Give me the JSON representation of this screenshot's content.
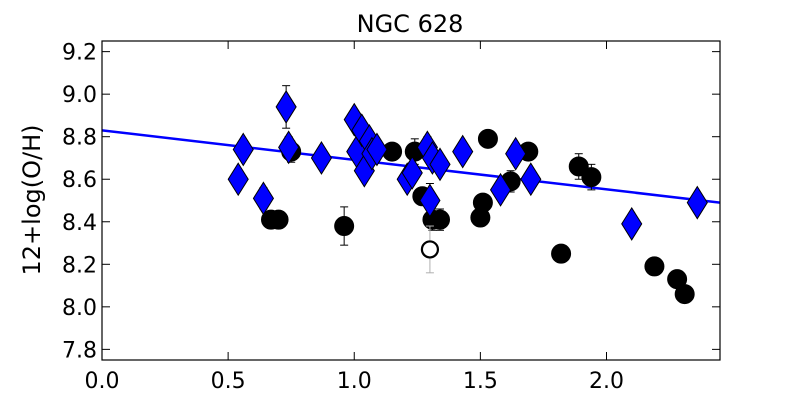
{
  "chart_data": {
    "type": "scatter",
    "title": "NGC 628",
    "xlabel": "",
    "ylabel": "12+log(O/H)",
    "xlim": [
      0.0,
      2.45
    ],
    "ylim": [
      7.75,
      9.25
    ],
    "xticks": [
      "0.0",
      "0.5",
      "1.0",
      "1.5",
      "2.0"
    ],
    "xtick_values": [
      0.0,
      0.5,
      1.0,
      1.5,
      2.0
    ],
    "yticks": [
      "7.8",
      "8.0",
      "8.2",
      "8.4",
      "8.6",
      "8.8",
      "9.0",
      "9.2"
    ],
    "ytick_values": [
      7.8,
      8.0,
      8.2,
      8.4,
      8.6,
      8.8,
      9.0,
      9.2
    ],
    "grid": false,
    "fit_line": {
      "color": "#0000ff",
      "x": [
        0.0,
        2.45
      ],
      "y": [
        8.83,
        8.49
      ]
    },
    "series": [
      {
        "marker": "circle",
        "color": "#000000",
        "points": [
          {
            "x": 0.67,
            "y": 8.41,
            "err": 0.02
          },
          {
            "x": 0.7,
            "y": 8.41,
            "err": 0.02
          },
          {
            "x": 0.75,
            "y": 8.73,
            "err": 0.05
          },
          {
            "x": 0.96,
            "y": 8.38,
            "err": 0.09
          },
          {
            "x": 1.15,
            "y": 8.73,
            "err": 0.04
          },
          {
            "x": 1.24,
            "y": 8.73,
            "err": 0.06
          },
          {
            "x": 1.27,
            "y": 8.52,
            "err": 0.04
          },
          {
            "x": 1.31,
            "y": 8.41,
            "err": 0.05
          },
          {
            "x": 1.34,
            "y": 8.41,
            "err": 0.05
          },
          {
            "x": 1.5,
            "y": 8.42,
            "err": 0.04
          },
          {
            "x": 1.51,
            "y": 8.49,
            "err": 0.04
          },
          {
            "x": 1.53,
            "y": 8.79,
            "err": 0.03
          },
          {
            "x": 1.62,
            "y": 8.59,
            "err": 0.05
          },
          {
            "x": 1.69,
            "y": 8.73,
            "err": 0.04
          },
          {
            "x": 1.82,
            "y": 8.25,
            "err": 0.02
          },
          {
            "x": 1.89,
            "y": 8.66,
            "err": 0.06
          },
          {
            "x": 1.94,
            "y": 8.61,
            "err": 0.06
          },
          {
            "x": 2.19,
            "y": 8.19,
            "err": 0.04
          },
          {
            "x": 2.28,
            "y": 8.13,
            "err": 0.02
          },
          {
            "x": 2.31,
            "y": 8.06,
            "err": 0.02
          }
        ]
      },
      {
        "marker": "open-circle",
        "color": "#000000",
        "points": [
          {
            "x": 1.3,
            "y": 8.27,
            "err": 0.11
          }
        ]
      },
      {
        "marker": "diamond",
        "color": "#0000ff",
        "points": [
          {
            "x": 0.54,
            "y": 8.6,
            "err": 0.04
          },
          {
            "x": 0.56,
            "y": 8.74,
            "err": 0.04
          },
          {
            "x": 0.64,
            "y": 8.51,
            "err": 0.05
          },
          {
            "x": 0.73,
            "y": 8.94,
            "err": 0.1
          },
          {
            "x": 0.74,
            "y": 8.75,
            "err": 0.05
          },
          {
            "x": 0.87,
            "y": 8.7,
            "err": 0.03
          },
          {
            "x": 1.0,
            "y": 8.88,
            "err": 0.03
          },
          {
            "x": 1.01,
            "y": 8.73,
            "err": 0.03
          },
          {
            "x": 1.03,
            "y": 8.83,
            "err": 0.03
          },
          {
            "x": 1.04,
            "y": 8.64,
            "err": 0.03
          },
          {
            "x": 1.06,
            "y": 8.78,
            "err": 0.03
          },
          {
            "x": 1.07,
            "y": 8.72,
            "err": 0.03
          },
          {
            "x": 1.09,
            "y": 8.74,
            "err": 0.03
          },
          {
            "x": 1.21,
            "y": 8.6,
            "err": 0.04
          },
          {
            "x": 1.23,
            "y": 8.63,
            "err": 0.04
          },
          {
            "x": 1.29,
            "y": 8.75,
            "err": 0.05
          },
          {
            "x": 1.3,
            "y": 8.5,
            "err": 0.08
          },
          {
            "x": 1.31,
            "y": 8.7,
            "err": 0.04
          },
          {
            "x": 1.34,
            "y": 8.67,
            "err": 0.04
          },
          {
            "x": 1.43,
            "y": 8.73,
            "err": 0.04
          },
          {
            "x": 1.58,
            "y": 8.55,
            "err": 0.04
          },
          {
            "x": 1.64,
            "y": 8.72,
            "err": 0.04
          },
          {
            "x": 1.7,
            "y": 8.6,
            "err": 0.04
          },
          {
            "x": 2.1,
            "y": 8.39,
            "err": 0.04
          },
          {
            "x": 2.36,
            "y": 8.49,
            "err": 0.04
          }
        ]
      }
    ]
  }
}
